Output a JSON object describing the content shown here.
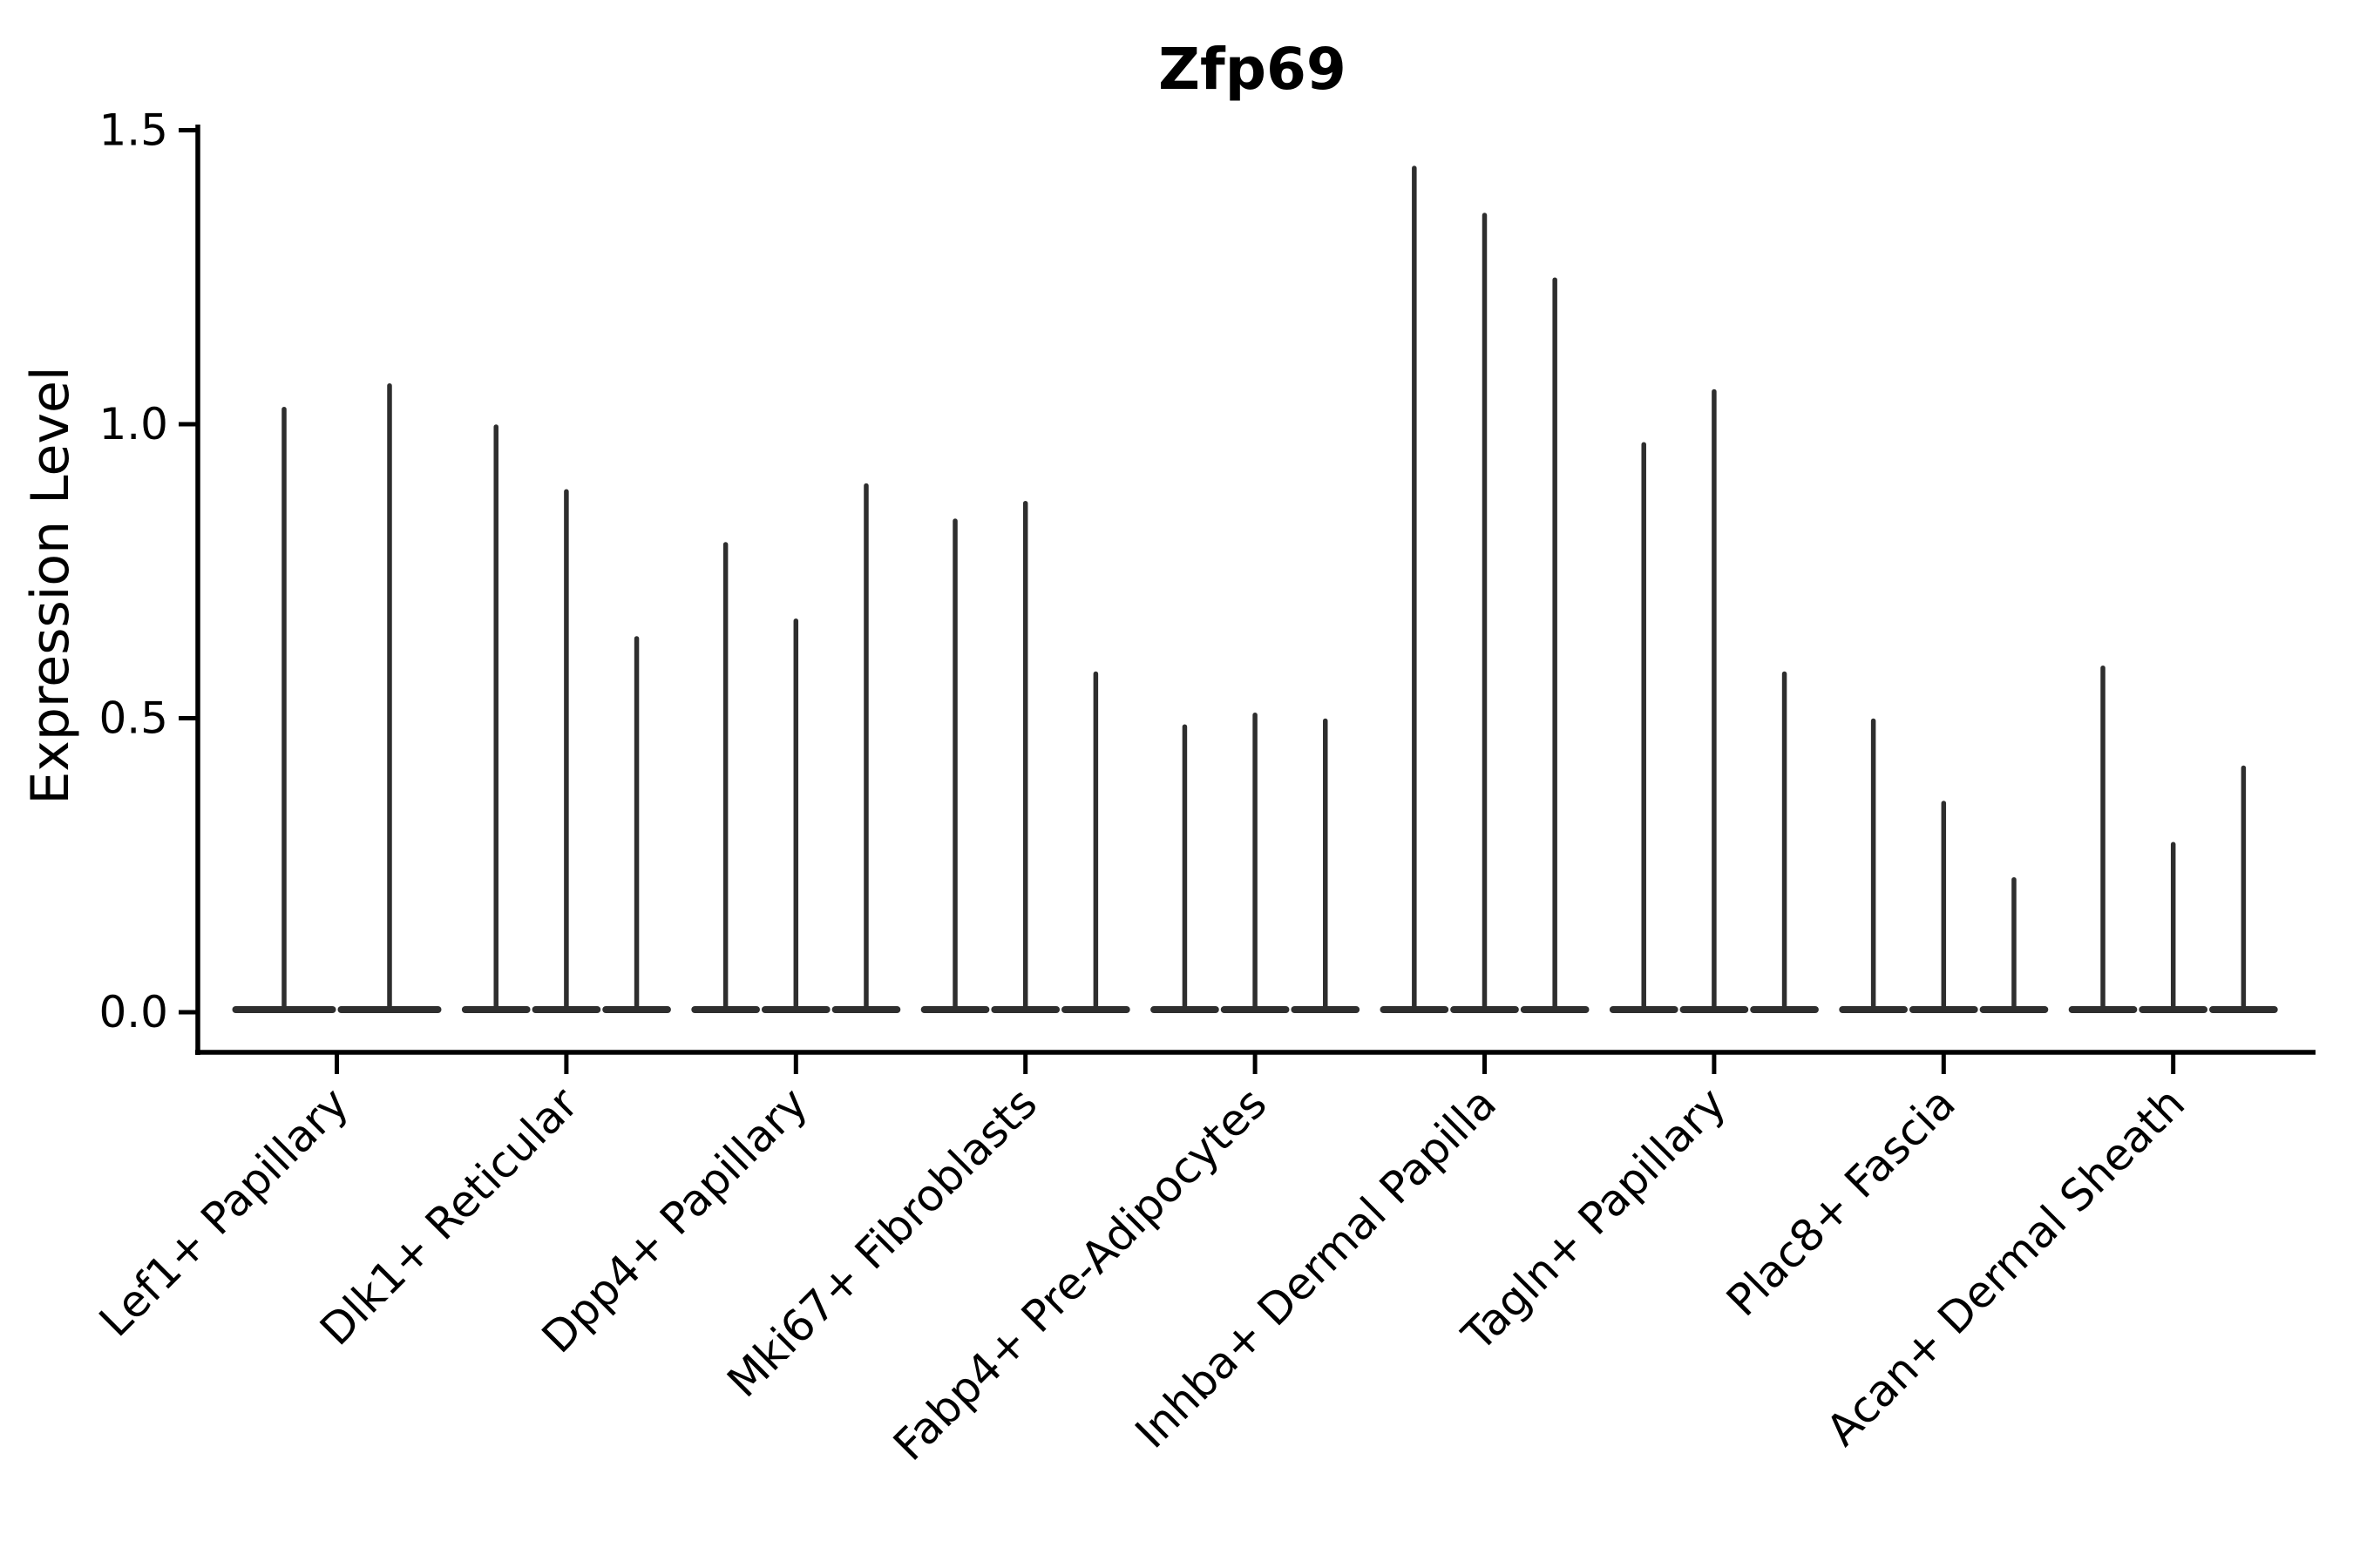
{
  "chart_data": {
    "type": "violin",
    "title": "Zfp69",
    "ylabel": "Expression Level",
    "xlabel": "",
    "ylim": [
      0.0,
      1.5
    ],
    "yticks": [
      "0.0",
      "0.5",
      "1.0",
      "1.5"
    ],
    "ytick_values": [
      0.0,
      0.5,
      1.0,
      1.5
    ],
    "grid": false,
    "legend": "none",
    "violin_style": "needle-shaped violins: wide flat base at 0 expression with thin vertical spike up to the max expression value",
    "groups": [
      {
        "label": "Lef1+ Papillary",
        "violin_max": [
          1.03,
          1.07
        ]
      },
      {
        "label": "Dlk1+ Reticular",
        "violin_max": [
          1.0,
          0.89,
          0.64
        ]
      },
      {
        "label": "Dpp4+ Papillary",
        "violin_max": [
          0.8,
          0.67,
          0.9
        ]
      },
      {
        "label": "Mki67+ Fibroblasts",
        "violin_max": [
          0.84,
          0.87,
          0.58
        ]
      },
      {
        "label": "Fabp4+ Pre-Adipocytes",
        "violin_max": [
          0.49,
          0.51,
          0.5
        ]
      },
      {
        "label": "Inhba+ Dermal Papilla",
        "violin_max": [
          1.44,
          1.36,
          1.25
        ]
      },
      {
        "label": "Tagln+ Papillary",
        "violin_max": [
          0.97,
          1.06,
          0.58
        ]
      },
      {
        "label": "Plac8+ Fascia",
        "violin_max": [
          0.5,
          0.36,
          0.23
        ]
      },
      {
        "label": "Acan+ Dermal Sheath",
        "violin_max": [
          0.59,
          0.29,
          0.42
        ]
      }
    ]
  },
  "colors": {
    "violin": "#2e2e2e",
    "axis": "#000000",
    "text": "#000000",
    "background": "#ffffff"
  }
}
